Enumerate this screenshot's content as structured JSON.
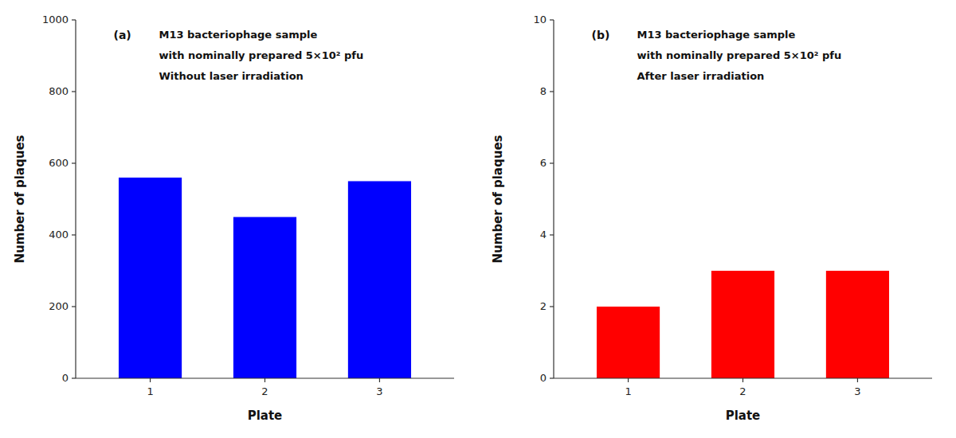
{
  "chart_data": [
    {
      "type": "bar",
      "annotations": [
        "(a)",
        "M13 bacteriophage sample",
        "with nominally prepared 5×10² pfu",
        "Without laser irradiation"
      ],
      "x_label": "Plate",
      "y_label": "Number of plaques",
      "categories": [
        "1",
        "2",
        "3"
      ],
      "values": [
        560,
        450,
        550
      ],
      "color": "#0000FF",
      "ylim": [
        0,
        1000
      ],
      "yticks": [
        0,
        200,
        400,
        600,
        800,
        1000
      ],
      "grid": false
    },
    {
      "type": "bar",
      "annotations": [
        "(b)",
        "M13 bacteriophage sample",
        "with nominally prepared 5×10² pfu",
        "After laser irradiation"
      ],
      "x_label": "Plate",
      "y_label": "Number of plaques",
      "categories": [
        "1",
        "2",
        "3"
      ],
      "values": [
        2,
        3,
        3
      ],
      "color": "#FF0000",
      "ylim": [
        0,
        10
      ],
      "yticks": [
        0,
        2,
        4,
        6,
        8,
        10
      ],
      "grid": false
    }
  ]
}
